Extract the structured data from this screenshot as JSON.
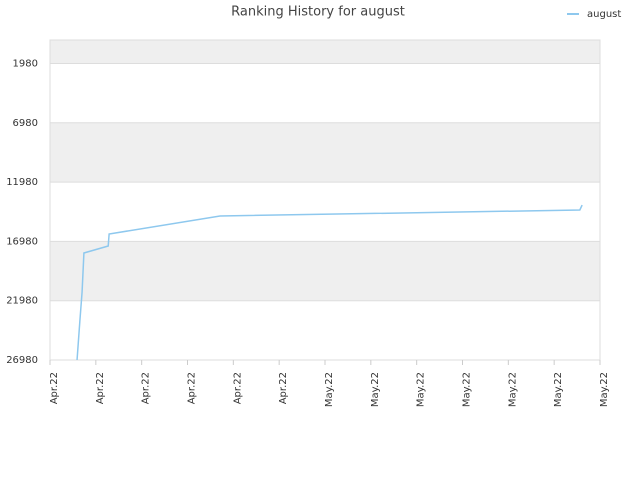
{
  "chart_data": {
    "type": "line",
    "title": "Ranking History for august",
    "x": [
      0.59,
      0.65,
      0.7,
      0.74,
      1.27,
      1.29,
      3.71,
      11.56,
      11.61
    ],
    "series": [
      {
        "name": "august",
        "color": "#8ec8ee",
        "values": [
          26980,
          23776,
          21247,
          17959,
          17369,
          16357,
          14839,
          14333,
          13912
        ]
      }
    ],
    "xlim": [
      0,
      12
    ],
    "xticks": [
      {
        "value": 0,
        "label": "Apr.22"
      },
      {
        "value": 1,
        "label": "Apr.22"
      },
      {
        "value": 2,
        "label": "Apr.22"
      },
      {
        "value": 3,
        "label": "Apr.22"
      },
      {
        "value": 4,
        "label": "Apr.22"
      },
      {
        "value": 5,
        "label": "Apr.22"
      },
      {
        "value": 6,
        "label": "May.22"
      },
      {
        "value": 7,
        "label": "May.22"
      },
      {
        "value": 8,
        "label": "May.22"
      },
      {
        "value": 9,
        "label": "May.22"
      },
      {
        "value": 10,
        "label": "May.22"
      },
      {
        "value": 11,
        "label": "May.22"
      },
      {
        "value": 12,
        "label": "May.22"
      }
    ],
    "ylim": [
      26980,
      0
    ],
    "yticks": [
      1980,
      6980,
      11980,
      16980,
      21980,
      26980
    ],
    "grid": true,
    "legend": "top-right"
  }
}
